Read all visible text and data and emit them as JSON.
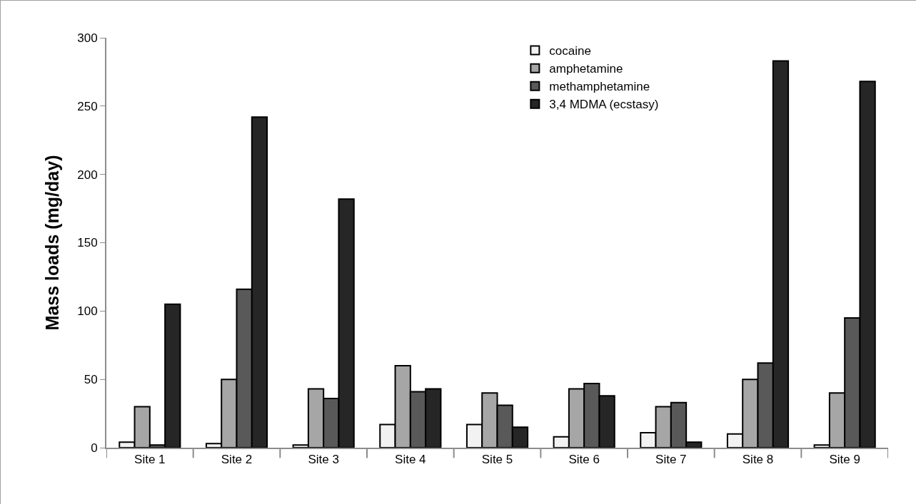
{
  "chart_data": {
    "type": "bar",
    "ylabel": "Mass loads (mg/day)",
    "categories": [
      "Site 1",
      "Site 2",
      "Site 3",
      "Site 4",
      "Site 5",
      "Site 6",
      "Site 7",
      "Site 8",
      "Site 9"
    ],
    "series": [
      {
        "name": "cocaine",
        "color": "#f2f2f2",
        "values": [
          4,
          3,
          2,
          17,
          17,
          8,
          11,
          10,
          2
        ]
      },
      {
        "name": "amphetamine",
        "color": "#a6a6a6",
        "values": [
          30,
          50,
          43,
          60,
          40,
          43,
          30,
          50,
          40
        ]
      },
      {
        "name": "methamphetamine",
        "color": "#595959",
        "values": [
          2,
          116,
          36,
          41,
          31,
          47,
          33,
          62,
          95
        ]
      },
      {
        "name": "3,4 MDMA (ecstasy)",
        "color": "#262626",
        "values": [
          105,
          242,
          182,
          43,
          15,
          38,
          4,
          283,
          268
        ]
      }
    ],
    "ylim": [
      0,
      300
    ],
    "yticks": [
      0,
      50,
      100,
      150,
      200,
      250,
      300
    ],
    "grid": false,
    "legend": "top"
  }
}
